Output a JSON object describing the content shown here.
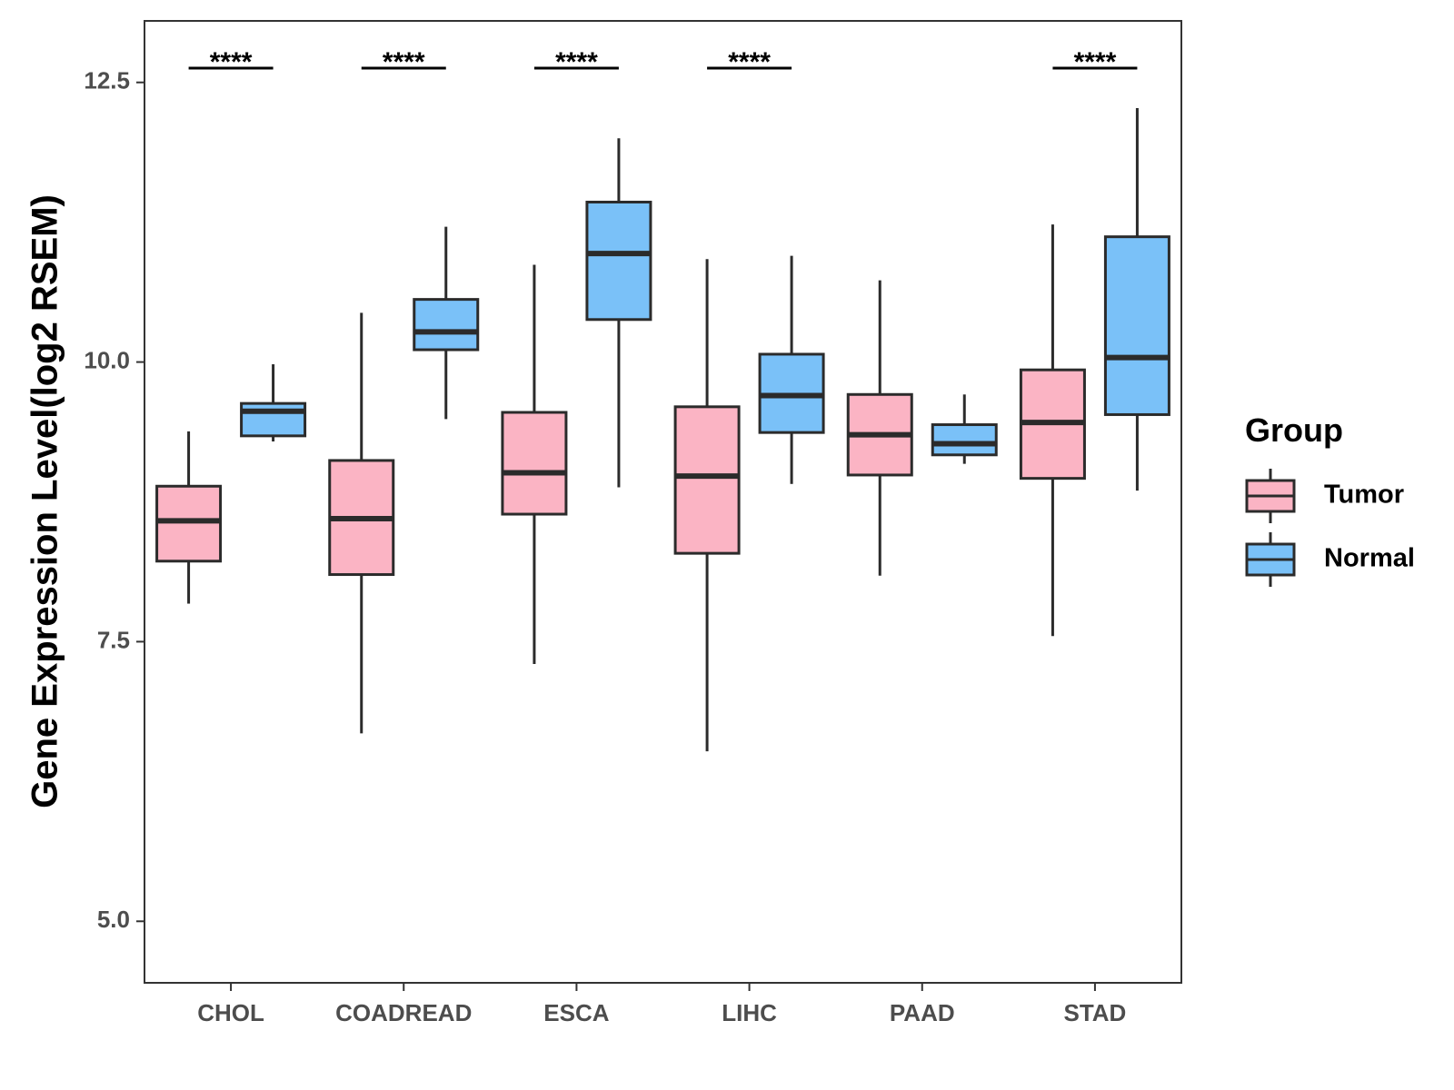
{
  "chart_data": {
    "type": "boxplot",
    "title": "",
    "xlabel": "",
    "ylabel": "Gene Expression Level(log2 RSEM)",
    "ylim": [
      4.45,
      13.05
    ],
    "yticks": [
      5.0,
      7.5,
      10.0,
      12.5
    ],
    "ytick_labels": [
      "5.0",
      "7.5",
      "10.0",
      "12.5"
    ],
    "grid": false,
    "legend": {
      "title": "Group",
      "position": "right",
      "entries": [
        {
          "name": "Tumor",
          "color": "#FBB4C4"
        },
        {
          "name": "Normal",
          "color": "#7AC1F8"
        }
      ]
    },
    "categories": [
      "CHOL",
      "COADREAD",
      "ESCA",
      "LIHC",
      "PAAD",
      "STAD"
    ],
    "series": [
      {
        "name": "Tumor",
        "color": "#FBB4C4",
        "boxes": [
          {
            "min": 7.84,
            "q1": 8.22,
            "median": 8.58,
            "q3": 8.89,
            "max": 9.38
          },
          {
            "min": 6.68,
            "q1": 8.1,
            "median": 8.6,
            "q3": 9.12,
            "max": 10.44
          },
          {
            "min": 7.3,
            "q1": 8.64,
            "median": 9.01,
            "q3": 9.55,
            "max": 10.87
          },
          {
            "min": 6.52,
            "q1": 8.29,
            "median": 8.98,
            "q3": 9.6,
            "max": 10.92
          },
          {
            "min": 8.09,
            "q1": 8.99,
            "median": 9.35,
            "q3": 9.71,
            "max": 10.73
          },
          {
            "min": 7.55,
            "q1": 8.96,
            "median": 9.46,
            "q3": 9.93,
            "max": 11.23
          }
        ]
      },
      {
        "name": "Normal",
        "color": "#7AC1F8",
        "boxes": [
          {
            "min": 9.29,
            "q1": 9.34,
            "median": 9.56,
            "q3": 9.63,
            "max": 9.98
          },
          {
            "min": 9.49,
            "q1": 10.11,
            "median": 10.27,
            "q3": 10.56,
            "max": 11.21
          },
          {
            "min": 8.88,
            "q1": 10.38,
            "median": 10.97,
            "q3": 11.43,
            "max": 12.0
          },
          {
            "min": 8.91,
            "q1": 9.37,
            "median": 9.7,
            "q3": 10.07,
            "max": 10.95
          },
          {
            "min": 9.09,
            "q1": 9.17,
            "median": 9.27,
            "q3": 9.44,
            "max": 9.71
          },
          {
            "min": 8.85,
            "q1": 9.53,
            "median": 10.04,
            "q3": 11.12,
            "max": 12.27
          }
        ]
      }
    ],
    "annotations": [
      {
        "category": "CHOL",
        "text": "****"
      },
      {
        "category": "COADREAD",
        "text": "****"
      },
      {
        "category": "ESCA",
        "text": "****"
      },
      {
        "category": "LIHC",
        "text": "****"
      },
      {
        "category": "STAD",
        "text": "****"
      }
    ]
  }
}
